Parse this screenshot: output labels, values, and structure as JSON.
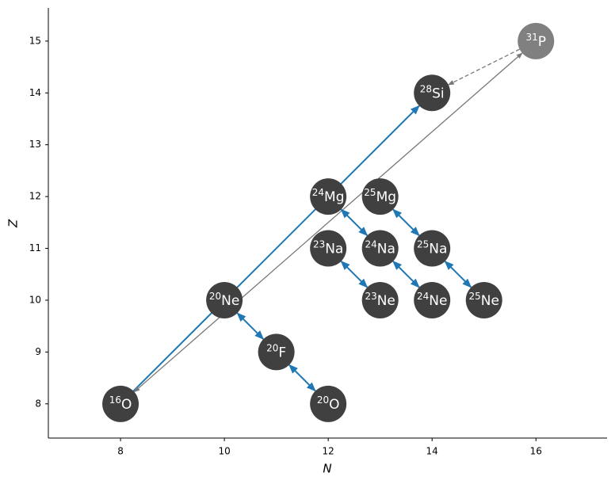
{
  "chart_data": {
    "type": "network",
    "xlabel": "N",
    "ylabel": "Z",
    "xlim": [
      6.61,
      17.37
    ],
    "ylim": [
      7.34,
      15.64
    ],
    "xticks": [
      8,
      10,
      12,
      14,
      16
    ],
    "yticks": [
      8,
      9,
      10,
      11,
      12,
      13,
      14,
      15
    ],
    "nodes": [
      {
        "mass": "16",
        "symbol": "O",
        "x": 8,
        "y": 8,
        "color": "#404040"
      },
      {
        "mass": "20",
        "symbol": "Ne",
        "x": 10,
        "y": 10,
        "color": "#404040"
      },
      {
        "mass": "20",
        "symbol": "F",
        "x": 11,
        "y": 9,
        "color": "#404040"
      },
      {
        "mass": "20",
        "symbol": "O",
        "x": 12,
        "y": 8,
        "color": "#404040"
      },
      {
        "mass": "24",
        "symbol": "Mg",
        "x": 12,
        "y": 12,
        "color": "#404040"
      },
      {
        "mass": "25",
        "symbol": "Mg",
        "x": 13,
        "y": 12,
        "color": "#404040"
      },
      {
        "mass": "23",
        "symbol": "Na",
        "x": 12,
        "y": 11,
        "color": "#404040"
      },
      {
        "mass": "24",
        "symbol": "Na",
        "x": 13,
        "y": 11,
        "color": "#404040"
      },
      {
        "mass": "25",
        "symbol": "Na",
        "x": 14,
        "y": 11,
        "color": "#404040"
      },
      {
        "mass": "23",
        "symbol": "Ne",
        "x": 13,
        "y": 10,
        "color": "#404040"
      },
      {
        "mass": "24",
        "symbol": "Ne",
        "x": 14,
        "y": 10,
        "color": "#404040"
      },
      {
        "mass": "25",
        "symbol": "Ne",
        "x": 15,
        "y": 10,
        "color": "#404040"
      },
      {
        "mass": "28",
        "symbol": "Si",
        "x": 14,
        "y": 14,
        "color": "#404040"
      },
      {
        "mass": "31",
        "symbol": "P",
        "x": 16,
        "y": 15,
        "color": "#808080"
      }
    ],
    "links": [
      {
        "from": 0,
        "to": 12,
        "color": "#1f77b4",
        "style": "solid",
        "heads": "end"
      },
      {
        "from": 0,
        "to": 13,
        "color": "#777777",
        "style": "solid",
        "heads": "both"
      },
      {
        "from": 13,
        "to": 12,
        "color": "#777777",
        "style": "dashed",
        "heads": "end"
      },
      {
        "from": 1,
        "to": 2,
        "color": "#1f77b4",
        "style": "solid",
        "heads": "both"
      },
      {
        "from": 2,
        "to": 3,
        "color": "#1f77b4",
        "style": "solid",
        "heads": "both"
      },
      {
        "from": 4,
        "to": 7,
        "color": "#1f77b4",
        "style": "solid",
        "heads": "both"
      },
      {
        "from": 6,
        "to": 9,
        "color": "#1f77b4",
        "style": "solid",
        "heads": "both"
      },
      {
        "from": 5,
        "to": 8,
        "color": "#1f77b4",
        "style": "solid",
        "heads": "both"
      },
      {
        "from": 7,
        "to": 10,
        "color": "#1f77b4",
        "style": "solid",
        "heads": "both"
      },
      {
        "from": 8,
        "to": 11,
        "color": "#1f77b4",
        "style": "solid",
        "heads": "both"
      }
    ]
  }
}
